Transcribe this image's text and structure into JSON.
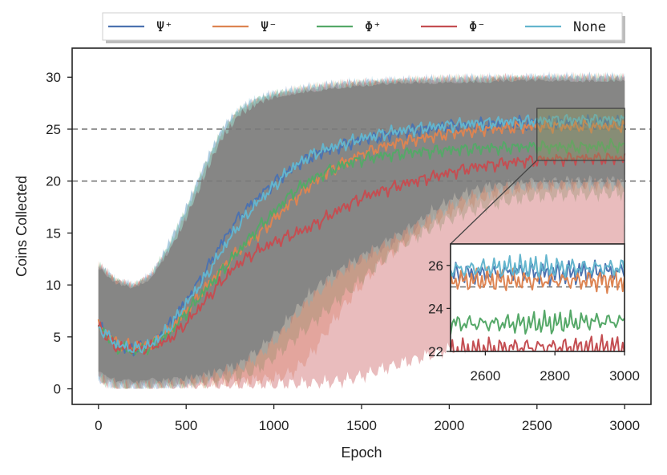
{
  "chart_data": {
    "type": "line",
    "title": "",
    "xlabel": "Epoch",
    "ylabel": "Coins Collected",
    "xlim": [
      -150,
      3150
    ],
    "ylim": [
      -1.5,
      32.8
    ],
    "xticks": [
      0,
      500,
      1000,
      1500,
      2000,
      2500,
      3000
    ],
    "xtick_labels": [
      "0",
      "500",
      "1000",
      "1500",
      "2000",
      "2500",
      "3000"
    ],
    "yticks": [
      0,
      5,
      10,
      15,
      20,
      25,
      30
    ],
    "ytick_labels": [
      "0",
      "5",
      "10",
      "15",
      "20",
      "25",
      "30"
    ],
    "reference_lines": [
      25,
      20
    ],
    "legend_position": "top-center, above plot",
    "series": [
      {
        "name": "Ψ⁺",
        "color": "#4c72b0",
        "x": [
          0,
          100,
          200,
          300,
          400,
          500,
          600,
          700,
          800,
          900,
          1000,
          1100,
          1200,
          1300,
          1400,
          1500,
          1600,
          1700,
          1800,
          1900,
          2000,
          2100,
          2200,
          2300,
          2400,
          2500,
          2600,
          2700,
          2800,
          2900,
          3000
        ],
        "y": [
          6,
          4.3,
          3.8,
          4.2,
          6.0,
          8.5,
          11,
          14,
          16.5,
          18.3,
          19.8,
          21.2,
          22.3,
          22.9,
          23.5,
          24.0,
          24.3,
          24.6,
          24.9,
          25.1,
          25.3,
          25.4,
          25.5,
          25.5,
          25.6,
          25.6,
          25.6,
          25.7,
          25.6,
          25.7,
          25.7
        ],
        "band_low": [
          1,
          0.3,
          0.2,
          0.3,
          0.4,
          0.6,
          1.0,
          1.6,
          2.2,
          3.5,
          5.0,
          7.0,
          9.0,
          10.5,
          11.5,
          12.5,
          13.5,
          14.5,
          15.5,
          17.0,
          18.0,
          18.8,
          19.3,
          19.5,
          19.6,
          19.7,
          19.7,
          19.8,
          19.8,
          19.8,
          19.8
        ],
        "band_high": [
          11.5,
          10,
          9.5,
          10.5,
          13.5,
          17,
          21,
          24.5,
          26.5,
          27.5,
          28.0,
          28.3,
          28.6,
          28.8,
          29.0,
          29.1,
          29.2,
          29.3,
          29.3,
          29.4,
          29.4,
          29.5,
          29.5,
          29.5,
          29.5,
          29.6,
          29.6,
          29.6,
          29.6,
          29.6,
          29.6
        ]
      },
      {
        "name": "Ψ⁻",
        "color": "#dd8452",
        "x": [
          0,
          100,
          200,
          300,
          400,
          500,
          600,
          700,
          800,
          900,
          1000,
          1100,
          1200,
          1300,
          1400,
          1500,
          1600,
          1700,
          1800,
          1900,
          2000,
          2100,
          2200,
          2300,
          2400,
          2500,
          2600,
          2700,
          2800,
          2900,
          3000
        ],
        "y": [
          6,
          4.5,
          4.0,
          4.3,
          5.5,
          7.5,
          9.5,
          11.5,
          13.3,
          14.7,
          16.3,
          18.0,
          19.5,
          20.8,
          21.8,
          22.6,
          23.2,
          23.7,
          24.0,
          24.3,
          24.6,
          24.8,
          25.0,
          25.1,
          25.2,
          25.3,
          25.3,
          25.3,
          25.3,
          25.3,
          25.3
        ],
        "band_low": [
          1,
          0.3,
          0.2,
          0.3,
          0.3,
          0.4,
          0.5,
          0.6,
          0.7,
          0.8,
          1.0,
          1.5,
          3.0,
          5.5,
          8.0,
          10.0,
          12.0,
          13.5,
          14.8,
          16.0,
          17.0,
          17.8,
          18.5,
          19.0,
          19.3,
          19.5,
          19.6,
          19.7,
          19.7,
          19.7,
          19.7
        ],
        "band_high": [
          11.5,
          10,
          9.5,
          10.5,
          13.0,
          16.5,
          20.5,
          24.0,
          26.3,
          27.3,
          27.9,
          28.2,
          28.5,
          28.7,
          28.9,
          29.0,
          29.1,
          29.2,
          29.3,
          29.3,
          29.4,
          29.4,
          29.4,
          29.5,
          29.5,
          29.5,
          29.5,
          29.5,
          29.5,
          29.5,
          29.5
        ]
      },
      {
        "name": "Φ⁺",
        "color": "#55a868",
        "x": [
          0,
          100,
          200,
          300,
          400,
          500,
          600,
          700,
          800,
          900,
          1000,
          1100,
          1200,
          1300,
          1400,
          1500,
          1600,
          1700,
          1800,
          1900,
          2000,
          2100,
          2200,
          2300,
          2400,
          2500,
          2600,
          2700,
          2800,
          2900,
          3000
        ],
        "y": [
          6,
          4.0,
          3.6,
          4.0,
          5.3,
          7.3,
          9.3,
          11.3,
          13.3,
          15.3,
          17.0,
          18.8,
          20.0,
          20.9,
          21.6,
          22.1,
          22.4,
          22.6,
          22.8,
          22.9,
          23.0,
          23.1,
          23.2,
          23.2,
          23.3,
          23.3,
          23.3,
          23.3,
          23.3,
          23.4,
          23.4
        ],
        "band_low": [
          1,
          0.3,
          0.2,
          0.3,
          0.3,
          0.4,
          0.6,
          0.9,
          1.2,
          1.8,
          3.0,
          4.5,
          6.0,
          7.5,
          9.0,
          10.5,
          12.0,
          13.5,
          14.5,
          15.5,
          16.3,
          17.0,
          17.5,
          18.0,
          18.3,
          18.5,
          18.6,
          18.7,
          18.7,
          18.8,
          18.8
        ],
        "band_high": [
          11.5,
          10,
          9.5,
          10.5,
          13.3,
          16.8,
          20.8,
          24.3,
          26.4,
          27.4,
          28.0,
          28.3,
          28.5,
          28.7,
          28.9,
          29.0,
          29.1,
          29.2,
          29.3,
          29.3,
          29.4,
          29.4,
          29.4,
          29.5,
          29.5,
          29.5,
          29.5,
          29.5,
          29.5,
          29.5,
          29.5
        ]
      },
      {
        "name": "Φ⁻",
        "color": "#c44e52",
        "x": [
          0,
          100,
          200,
          300,
          400,
          500,
          600,
          700,
          800,
          900,
          1000,
          1100,
          1200,
          1300,
          1400,
          1500,
          1600,
          1700,
          1800,
          1900,
          2000,
          2100,
          2200,
          2300,
          2400,
          2500,
          2600,
          2700,
          2800,
          2900,
          3000
        ],
        "y": [
          6,
          4.0,
          3.8,
          4.0,
          4.7,
          6.3,
          8.3,
          10.3,
          12.1,
          13.2,
          14.1,
          14.8,
          15.5,
          16.5,
          17.5,
          18.4,
          19.0,
          19.5,
          20.0,
          20.4,
          20.8,
          21.2,
          21.5,
          21.7,
          21.9,
          22.0,
          22.1,
          22.2,
          22.2,
          22.2,
          22.2
        ],
        "band_low": [
          1,
          0.3,
          0.2,
          0.3,
          0.3,
          0.3,
          0.3,
          0.3,
          0.3,
          0.4,
          0.4,
          0.5,
          0.5,
          0.6,
          0.8,
          1.2,
          1.8,
          2.3,
          2.8,
          3.3,
          3.8,
          4.2,
          4.5,
          4.7,
          4.8,
          4.9,
          4.9,
          5.0,
          5.0,
          5.0,
          5.0
        ],
        "band_high": [
          11.5,
          10,
          9.5,
          10.5,
          12.8,
          16.0,
          20.0,
          23.7,
          25.9,
          27.0,
          27.7,
          28.1,
          28.4,
          28.7,
          28.9,
          29.0,
          29.1,
          29.2,
          29.3,
          29.3,
          29.4,
          29.4,
          29.4,
          29.5,
          29.5,
          29.5,
          29.5,
          29.5,
          29.5,
          29.5,
          29.5
        ]
      },
      {
        "name": "None",
        "color": "#64b5cd",
        "x": [
          0,
          100,
          200,
          300,
          400,
          500,
          600,
          700,
          800,
          900,
          1000,
          1100,
          1200,
          1300,
          1400,
          1500,
          1600,
          1700,
          1800,
          1900,
          2000,
          2100,
          2200,
          2300,
          2400,
          2500,
          2600,
          2700,
          2800,
          2900,
          3000
        ],
        "y": [
          6,
          4.3,
          3.8,
          4.2,
          5.8,
          8.2,
          10.5,
          13.2,
          15.8,
          17.8,
          19.5,
          21.2,
          22.4,
          23.1,
          23.6,
          24.1,
          24.5,
          24.8,
          25.0,
          25.2,
          25.4,
          25.5,
          25.6,
          25.7,
          25.8,
          25.8,
          25.9,
          25.9,
          25.9,
          25.9,
          25.9
        ],
        "band_low": [
          1,
          0.3,
          0.2,
          0.3,
          0.4,
          0.6,
          1.0,
          1.5,
          2.0,
          3.0,
          4.5,
          6.5,
          8.5,
          10.0,
          11.5,
          12.5,
          13.5,
          14.5,
          15.5,
          16.5,
          17.5,
          18.3,
          18.9,
          19.3,
          19.5,
          19.6,
          19.6,
          19.7,
          19.7,
          19.7,
          19.7
        ],
        "band_high": [
          11.5,
          10,
          9.5,
          10.5,
          13.5,
          17,
          21,
          24.5,
          26.5,
          27.5,
          28.0,
          28.3,
          28.6,
          28.8,
          29.0,
          29.1,
          29.2,
          29.3,
          29.3,
          29.4,
          29.4,
          29.5,
          29.5,
          29.5,
          29.5,
          29.6,
          29.6,
          29.6,
          29.6,
          29.6,
          29.6
        ]
      }
    ],
    "inset": {
      "xlim": [
        2500,
        3000
      ],
      "ylim": [
        22,
        27
      ],
      "xticks": [
        2600,
        2800,
        3000
      ],
      "xtick_labels": [
        "2600",
        "2800",
        "3000"
      ],
      "yticks": [
        22,
        24,
        26
      ],
      "ytick_labels": [
        "22",
        "24",
        "26"
      ],
      "reference_lines": [
        25
      ],
      "zoom_region": {
        "x": [
          2500,
          3000
        ],
        "y": [
          22,
          27
        ]
      }
    }
  }
}
